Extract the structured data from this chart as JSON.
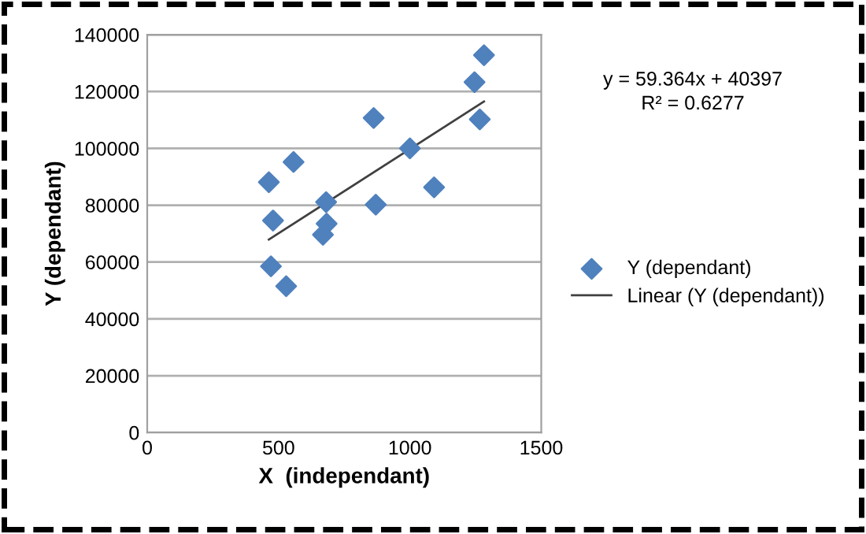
{
  "chart_data": {
    "type": "scatter",
    "xlabel": "X  (independant)",
    "ylabel": "Y (dependant)",
    "xlim": [
      0,
      1500
    ],
    "xticks": [
      0,
      500,
      1000,
      1500
    ],
    "ylim": [
      0,
      140000
    ],
    "yticks": [
      0,
      20000,
      40000,
      60000,
      80000,
      100000,
      120000,
      140000
    ],
    "grid": "y",
    "legend": "right",
    "marker": "diamond",
    "annotations": [
      "y = 59.364x + 40397",
      "R² = 0.6277"
    ],
    "series": [
      {
        "name": "Y (dependant)",
        "color": "#4f81bd",
        "x": [
          1282,
          1246,
          1266,
          862,
          1000,
          1092,
          557,
          463,
          681,
          870,
          479,
          683,
          669,
          471,
          529
        ],
        "values": [
          132800,
          123300,
          110200,
          110700,
          100000,
          86300,
          95200,
          88100,
          81100,
          80200,
          74600,
          73500,
          69600,
          58500,
          51500
        ]
      },
      {
        "name": "Linear (Y (dependant))",
        "type": "line",
        "color": "#404040",
        "line_style": "solid",
        "marker": "none",
        "x": [
          463,
          1282
        ],
        "values": [
          67900,
          116500
        ]
      }
    ]
  }
}
